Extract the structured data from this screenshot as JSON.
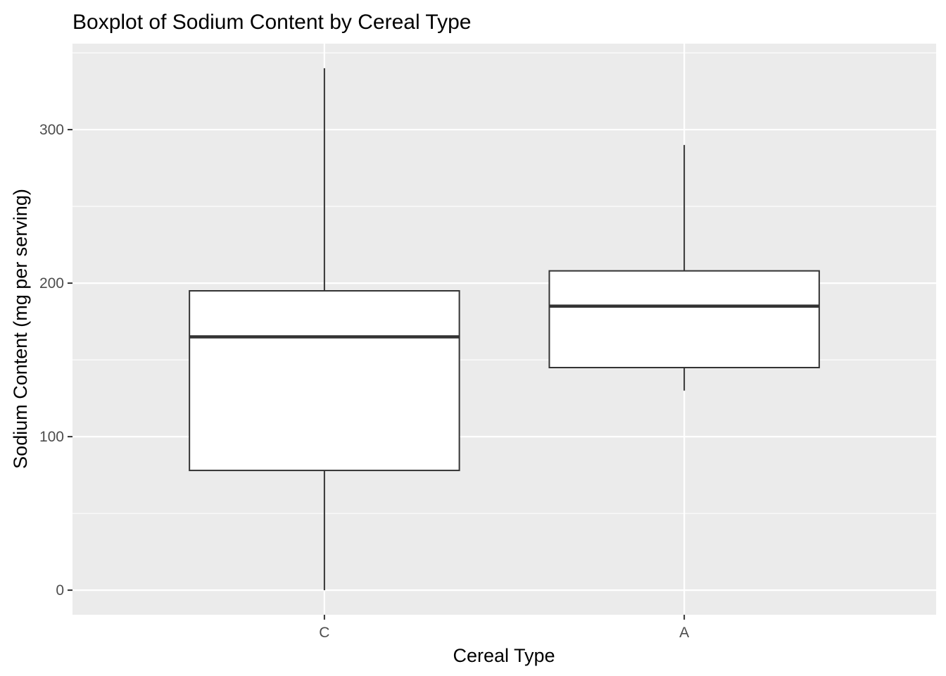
{
  "chart_data": {
    "type": "boxplot",
    "title": "Boxplot of Sodium Content by Cereal Type",
    "xlabel": "Cereal Type",
    "ylabel": "Sodium Content (mg per serving)",
    "categories": [
      "C",
      "A"
    ],
    "boxes": [
      {
        "category": "C",
        "whisker_low": 0,
        "q1": 78,
        "median": 165,
        "q3": 195,
        "whisker_high": 340
      },
      {
        "category": "A",
        "whisker_low": 130,
        "q1": 145,
        "median": 185,
        "q3": 208,
        "whisker_high": 290
      }
    ],
    "ylim": [
      -16,
      356
    ],
    "yticks": [
      0,
      100,
      200,
      300
    ],
    "ytick_labels": [
      "0",
      "100",
      "200",
      "300"
    ],
    "grid": true,
    "colors": {
      "panel_background": "#ebebeb",
      "gridline": "#ffffff",
      "box_fill": "#ffffff",
      "box_stroke": "#333333",
      "tick_mark": "#333333"
    }
  }
}
